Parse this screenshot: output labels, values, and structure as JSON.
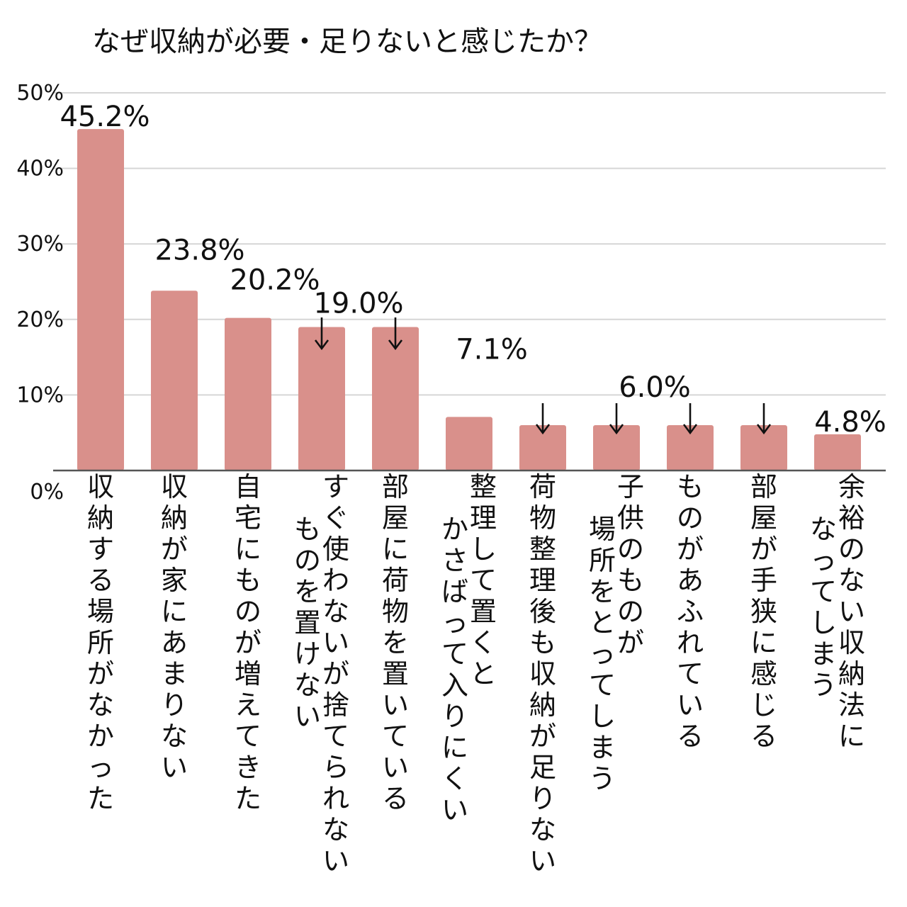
{
  "chart_data": {
    "type": "bar",
    "title": "なぜ収納が必要・足りないと感じたか？",
    "ylim": [
      0,
      50
    ],
    "yticks": [
      "0%",
      "10%",
      "20%",
      "30%",
      "40%",
      "50%"
    ],
    "grid": true,
    "bar_color": "#d9908b",
    "categories": [
      "収納する場所がなかった",
      "収納が家にあまりない",
      "自宅にものが増えてきた",
      "すぐ使わないが捨てられない↵ものを置けない",
      "部屋に荷物を置いている",
      "整理して置くと↵かさばって入りにくい",
      "荷物整理後も収納が足りない",
      "子供のものが↵場所をとってしまう",
      "ものがあふれている",
      "部屋が手狭に感じる",
      "余裕のない収納法に↵なってしまう"
    ],
    "values": [
      45.2,
      23.8,
      20.2,
      19.0,
      19.0,
      7.1,
      6.0,
      6.0,
      6.0,
      6.0,
      4.8
    ],
    "value_labels": [
      "45.2%",
      "23.8%",
      "20.2%",
      "19.0%",
      "",
      "7.1%",
      "",
      "6.0%",
      "",
      "",
      "4.8%"
    ],
    "annotations": [
      "19.0% label shared by bars 4–5 (arrows)",
      "6.0% label shared by bars 7–10 (arrows)"
    ]
  }
}
